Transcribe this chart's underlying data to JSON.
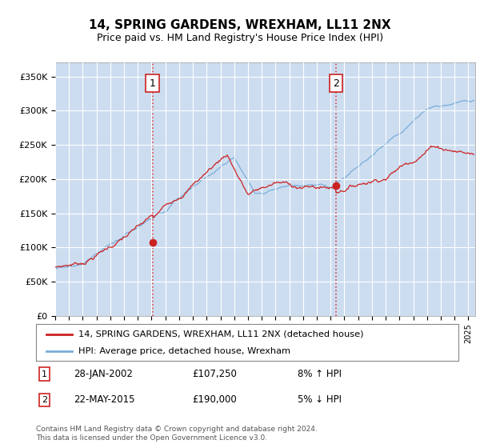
{
  "title": "14, SPRING GARDENS, WREXHAM, LL11 2NX",
  "subtitle": "Price paid vs. HM Land Registry's House Price Index (HPI)",
  "background_color": "#ccddf0",
  "ylim": [
    0,
    370000
  ],
  "yticks": [
    0,
    50000,
    100000,
    150000,
    200000,
    250000,
    300000,
    350000
  ],
  "ytick_labels": [
    "£0",
    "£50K",
    "£100K",
    "£150K",
    "£200K",
    "£250K",
    "£300K",
    "£350K"
  ],
  "hpi_color": "#7aadd9",
  "price_color": "#cc2222",
  "marker1_date": 2002.07,
  "marker1_price": 107250,
  "marker2_date": 2015.4,
  "marker2_price": 190000,
  "legend_line1": "14, SPRING GARDENS, WREXHAM, LL11 2NX (detached house)",
  "legend_line2": "HPI: Average price, detached house, Wrexham",
  "footnote": "Contains HM Land Registry data © Crown copyright and database right 2024.\nThis data is licensed under the Open Government Licence v3.0.",
  "xmin": 1995,
  "xmax": 2025.5
}
